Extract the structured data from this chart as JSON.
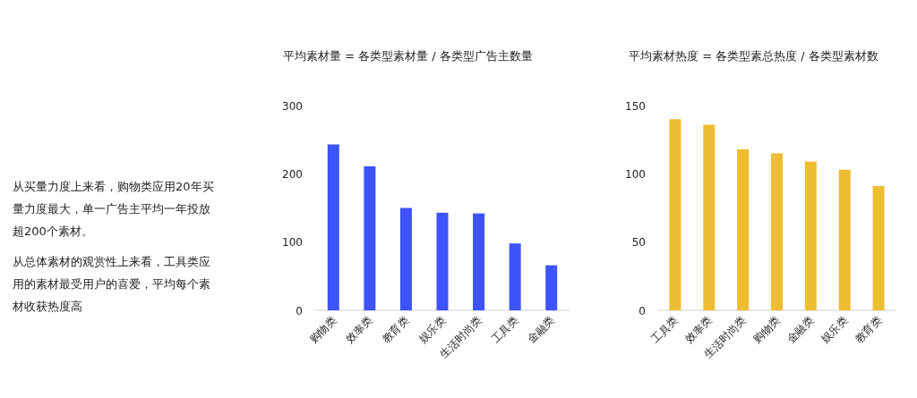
{
  "chart_data": [
    {
      "type": "other",
      "annotations": [
        "从买量力度上来看，购物类应用20年买量力度最大，单一广告主平均一年投放超200个素材。",
        "从总体素材的观赏性上来看，工具类应用的素材最受用户的喜爱，平均每个素材收获热度高"
      ]
    },
    {
      "type": "bar",
      "title": "平均素材量 = 各类型素材量 / 各类型广告主数量",
      "categories": [
        "购物类",
        "效率类",
        "教育类",
        "娱乐类",
        "生活时尚类",
        "工具类",
        "金融类"
      ],
      "values": [
        243,
        211,
        150,
        143,
        142,
        98,
        66
      ],
      "color": "#3d53fb",
      "ylim": [
        0,
        300
      ],
      "yticks": [
        0,
        100,
        200,
        300
      ]
    },
    {
      "type": "bar",
      "title": "平均素材热度 = 各类型素总热度 / 各类型素材数",
      "categories": [
        "工具类",
        "效率类",
        "生活时尚类",
        "购物类",
        "金融类",
        "娱乐类",
        "教育类"
      ],
      "values": [
        140,
        136,
        118,
        115,
        109,
        103,
        91
      ],
      "color": "#efbd32",
      "ylim": [
        0,
        150
      ],
      "yticks": [
        0,
        50,
        100,
        150
      ]
    }
  ]
}
